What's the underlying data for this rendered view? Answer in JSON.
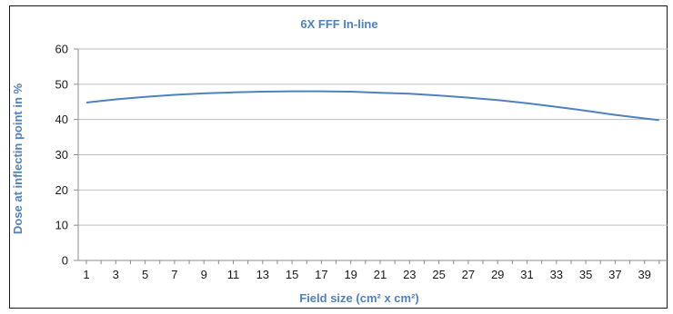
{
  "chart_data": {
    "type": "line",
    "title": "6X FFF  In-line",
    "xlabel": "Field size (cm² x cm²)",
    "ylabel": "Dose at  inflectin point in  %",
    "xlim": [
      1,
      40
    ],
    "ylim": [
      0,
      60
    ],
    "yticks": [
      0,
      10,
      20,
      30,
      40,
      50,
      60
    ],
    "xticks": [
      1,
      3,
      5,
      7,
      9,
      11,
      13,
      15,
      17,
      19,
      21,
      23,
      25,
      27,
      29,
      31,
      33,
      35,
      37,
      39
    ],
    "grid": true,
    "legend": "none",
    "color": "#4f81bd",
    "series": [
      {
        "x": [
          1,
          3,
          5,
          7,
          9,
          11,
          13,
          15,
          17,
          19,
          21,
          23,
          25,
          27,
          29,
          31,
          33,
          35,
          37,
          39,
          40
        ],
        "values": [
          44.8,
          45.7,
          46.4,
          47.0,
          47.4,
          47.7,
          47.9,
          48.0,
          48.0,
          47.9,
          47.6,
          47.3,
          46.8,
          46.2,
          45.5,
          44.6,
          43.6,
          42.5,
          41.3,
          40.3,
          39.8
        ]
      }
    ]
  }
}
